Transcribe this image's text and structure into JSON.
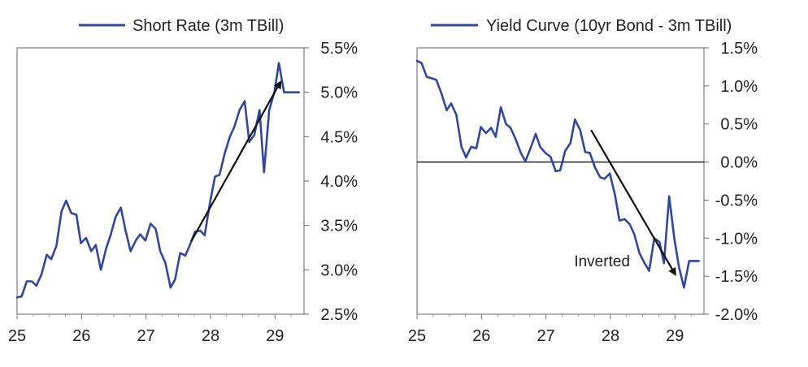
{
  "colors": {
    "series": "#33479a",
    "arrow": "#111111",
    "frame": "#666666",
    "zero": "#111111"
  },
  "chart_data": [
    {
      "type": "line",
      "legend": "Short Rate (3m TBill)",
      "xlim": [
        25,
        29.45
      ],
      "ylim": [
        2.5,
        5.5
      ],
      "x_ticks": [
        25,
        26,
        27,
        28,
        29
      ],
      "x_tick_labels": [
        "25",
        "26",
        "27",
        "28",
        "29"
      ],
      "y_ticks": [
        2.5,
        3.0,
        3.5,
        4.0,
        4.5,
        5.0,
        5.5
      ],
      "y_tick_labels": [
        "2.5%",
        "3.0%",
        "3.5%",
        "4.0%",
        "4.5%",
        "5.0%",
        "5.5%"
      ],
      "y_axis_side": "right",
      "series": [
        {
          "name": "Short Rate (3m TBill)",
          "x": [
            25.0,
            25.07,
            25.15,
            25.23,
            25.3,
            25.38,
            25.46,
            25.53,
            25.61,
            25.69,
            25.76,
            25.84,
            25.92,
            25.99,
            26.07,
            26.15,
            26.22,
            26.3,
            26.38,
            26.45,
            26.53,
            26.61,
            26.68,
            26.76,
            26.84,
            26.91,
            26.99,
            27.07,
            27.15,
            27.22,
            27.3,
            27.38,
            27.45,
            27.53,
            27.61,
            27.68,
            27.76,
            27.84,
            27.91,
            27.99,
            28.07,
            28.14,
            28.22,
            28.3,
            28.37,
            28.45,
            28.53,
            28.6,
            28.68,
            28.76,
            28.83,
            28.91,
            28.99,
            29.06,
            29.14,
            29.22,
            29.29,
            29.37
          ],
          "values": [
            2.69,
            2.7,
            2.87,
            2.87,
            2.82,
            2.95,
            3.17,
            3.12,
            3.27,
            3.66,
            3.78,
            3.64,
            3.62,
            3.3,
            3.36,
            3.21,
            3.28,
            3.0,
            3.24,
            3.39,
            3.6,
            3.7,
            3.45,
            3.21,
            3.33,
            3.4,
            3.33,
            3.52,
            3.46,
            3.21,
            3.08,
            2.8,
            2.89,
            3.19,
            3.16,
            3.28,
            3.43,
            3.44,
            3.39,
            3.75,
            4.05,
            4.07,
            4.31,
            4.5,
            4.61,
            4.8,
            4.9,
            4.44,
            4.52,
            4.8,
            4.1,
            4.8,
            5.0,
            5.33,
            5.0,
            5.0,
            5.0,
            5.0
          ]
        }
      ],
      "arrow": {
        "from": [
          27.7,
          3.32
        ],
        "to": [
          29.08,
          5.11
        ]
      }
    },
    {
      "type": "line",
      "legend": "Yield Curve (10yr Bond - 3m TBill)",
      "xlim": [
        25,
        29.45
      ],
      "ylim": [
        -2.0,
        1.5
      ],
      "x_ticks": [
        25,
        26,
        27,
        28,
        29
      ],
      "x_tick_labels": [
        "25",
        "26",
        "27",
        "28",
        "29"
      ],
      "y_ticks": [
        -2.0,
        -1.5,
        -1.0,
        -0.5,
        0.0,
        0.5,
        1.0,
        1.5
      ],
      "y_tick_labels": [
        "-2.0%",
        "-1.5%",
        "-1.0%",
        "-0.5%",
        "0.0%",
        "0.5%",
        "1.0%",
        "1.5%"
      ],
      "y_axis_side": "right",
      "zero_line": true,
      "series": [
        {
          "name": "Yield Curve (10yr Bond - 3m TBill)",
          "x": [
            25.0,
            25.07,
            25.15,
            25.23,
            25.3,
            25.38,
            25.46,
            25.53,
            25.61,
            25.69,
            25.76,
            25.84,
            25.92,
            25.99,
            26.07,
            26.15,
            26.22,
            26.3,
            26.38,
            26.45,
            26.53,
            26.61,
            26.68,
            26.76,
            26.84,
            26.91,
            26.99,
            27.07,
            27.15,
            27.22,
            27.3,
            27.38,
            27.45,
            27.53,
            27.61,
            27.68,
            27.76,
            27.84,
            27.91,
            27.99,
            28.07,
            28.14,
            28.22,
            28.3,
            28.37,
            28.45,
            28.53,
            28.6,
            28.68,
            28.76,
            28.83,
            28.91,
            28.99,
            29.06,
            29.14,
            29.22,
            29.29,
            29.37
          ],
          "values": [
            1.33,
            1.3,
            1.12,
            1.1,
            1.08,
            0.9,
            0.68,
            0.77,
            0.62,
            0.2,
            0.06,
            0.2,
            0.18,
            0.46,
            0.38,
            0.45,
            0.33,
            0.72,
            0.5,
            0.45,
            0.3,
            0.12,
            0.01,
            0.18,
            0.37,
            0.2,
            0.12,
            0.07,
            -0.12,
            -0.11,
            0.15,
            0.25,
            0.56,
            0.42,
            0.13,
            0.12,
            -0.07,
            -0.2,
            -0.22,
            -0.15,
            -0.43,
            -0.77,
            -0.75,
            -0.82,
            -0.95,
            -1.2,
            -1.33,
            -1.43,
            -1.0,
            -1.05,
            -1.33,
            -0.45,
            -1.0,
            -1.37,
            -1.65,
            -1.3,
            -1.3,
            -1.3
          ]
        }
      ],
      "arrow": {
        "from": [
          27.7,
          0.42
        ],
        "to": [
          29.0,
          -1.47
        ]
      },
      "annotation": {
        "text": "Inverted",
        "x": 27.87,
        "y": -1.37
      }
    }
  ]
}
